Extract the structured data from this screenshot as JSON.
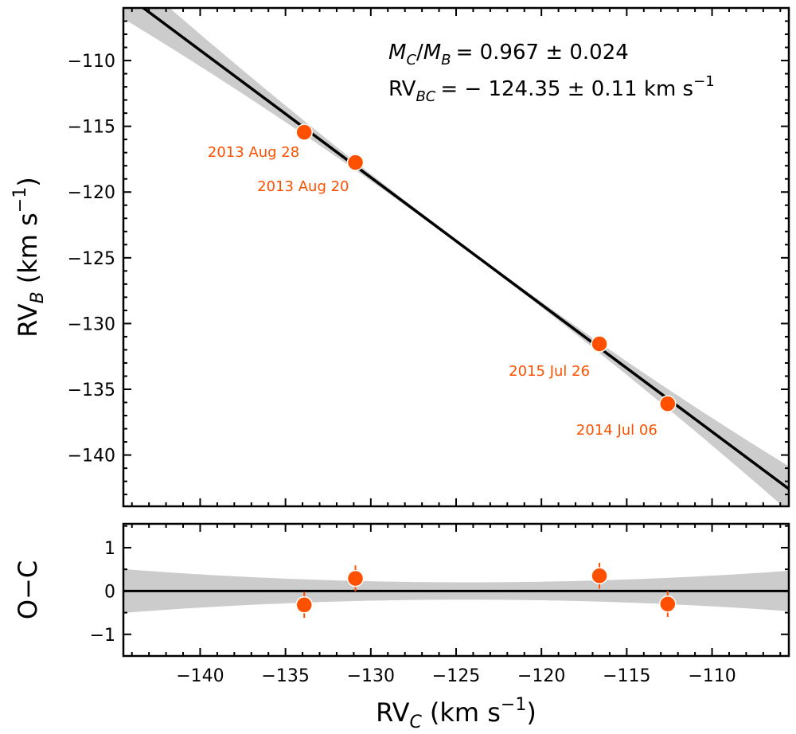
{
  "chart_data": [
    {
      "type": "scatter",
      "panel": "main",
      "xlim": [
        -144.5,
        -105.5
      ],
      "ylim": [
        -143.9,
        -106.0
      ],
      "x_major_ticks": [
        -140,
        -135,
        -130,
        -125,
        -120,
        -115,
        -110
      ],
      "y_major_ticks": [
        -110,
        -115,
        -120,
        -125,
        -130,
        -135,
        -140
      ],
      "y_tick_labels": [
        "−110",
        "−115",
        "−120",
        "−125",
        "−130",
        "−135",
        "−140"
      ],
      "ylabel_main": "RV",
      "ylabel_sub": "B",
      "ylabel_unit": "(km s",
      "ylabel_unit_sup": "−1",
      "ylabel_unit_end": ")",
      "points": [
        {
          "x": -133.9,
          "y": -115.45,
          "label": "2013 Aug 28"
        },
        {
          "x": -130.9,
          "y": -117.75,
          "label": "2013 Aug 20"
        },
        {
          "x": -116.6,
          "y": -131.55,
          "label": "2015 Jul 26"
        },
        {
          "x": -112.6,
          "y": -136.1,
          "label": "2014 Jul 06"
        }
      ],
      "fit_line": {
        "slope": -0.967,
        "intercept_at_rvc": -124.35,
        "rv_bc": -124.35
      },
      "annotation_ratio": {
        "lhs_M": "M",
        "lhs_sub1": "C",
        "slash": "/",
        "lhs_M2": "M",
        "lhs_sub2": "B",
        "rhs": "= 0.967 ± 0.024"
      },
      "annotation_rv": {
        "lhs": "RV",
        "lhs_sub": "BC",
        "rhs": "= − 124.35 ± 0.11 km s",
        "unit_sup": "−1"
      }
    },
    {
      "type": "scatter",
      "panel": "residuals",
      "xlim": [
        -144.5,
        -105.5
      ],
      "ylim": [
        -1.5,
        1.55
      ],
      "y_major_ticks": [
        1,
        0,
        -1
      ],
      "y_tick_labels": [
        "1",
        "0",
        "−1"
      ],
      "x_tick_labels": [
        "−140",
        "−135",
        "−130",
        "−125",
        "−120",
        "−115",
        "−110"
      ],
      "ylabel": "O−C",
      "xlabel_main": "RV",
      "xlabel_sub": "C",
      "xlabel_unit": "(km s",
      "xlabel_unit_sup": "−1",
      "xlabel_unit_end": ")",
      "points": [
        {
          "x": -133.9,
          "y": -0.32,
          "err": 0.3
        },
        {
          "x": -130.9,
          "y": 0.29,
          "err": 0.3
        },
        {
          "x": -116.6,
          "y": 0.35,
          "err": 0.3
        },
        {
          "x": -112.6,
          "y": -0.3,
          "err": 0.3
        }
      ],
      "zero_line": 0
    }
  ],
  "colors": {
    "point": "#ff5000",
    "label": "#ff5000",
    "fit": "#000000",
    "band": "#cccccc"
  }
}
